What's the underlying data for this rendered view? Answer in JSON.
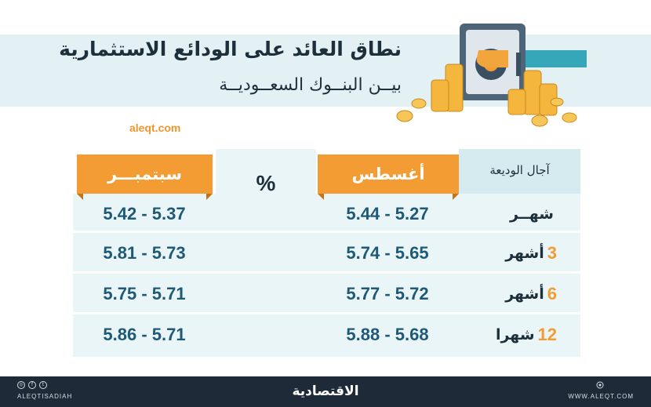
{
  "header": {
    "title": "نطاق العائد على الودائع الاستثمارية",
    "subtitle": "بيــن البنــوك السعــوديــة",
    "site": "aleqt.com"
  },
  "table": {
    "term_header": "آجال الوديعة",
    "august_header": "أغسطس",
    "september_header": "سبتمبـــر",
    "unit": "%",
    "rows": [
      {
        "term_num": "",
        "term_label": "شهــر",
        "august": "5.44 - 5.27",
        "september": "5.42 - 5.37"
      },
      {
        "term_num": "3",
        "term_label": "أشهر",
        "august": "5.74 - 5.65",
        "september": "5.81 - 5.73"
      },
      {
        "term_num": "6",
        "term_label": "أشهر",
        "august": "5.77 - 5.72",
        "september": "5.75 - 5.71"
      },
      {
        "term_num": "12",
        "term_label": "شهرا",
        "august": "5.88 - 5.68",
        "september": "5.86 - 5.71"
      }
    ]
  },
  "footer": {
    "brand": "الاقتصادية",
    "social_handle": "ALEQTISADIAH",
    "website": "WWW.ALEQT.COM",
    "icons": [
      "instagram-icon",
      "facebook-icon",
      "twitter-icon",
      "globe-icon"
    ]
  },
  "colors": {
    "accent": "#f39c34",
    "value_text": "#1e5a78",
    "band": "#e3f1f4",
    "cell": "#eaf5f7",
    "footer": "#1e2a38"
  }
}
